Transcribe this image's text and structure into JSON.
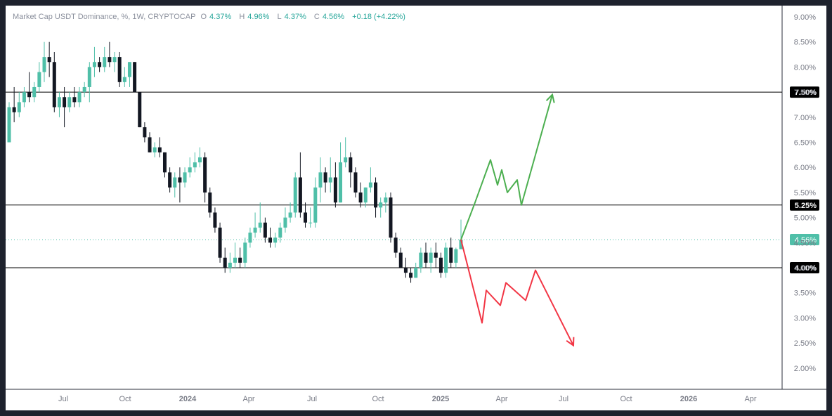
{
  "legend": {
    "symbol": "Market Cap USDT Dominance, %, 1W, CRYPTOCAP",
    "o_label": "O",
    "o_value": "4.37%",
    "h_label": "H",
    "h_value": "4.96%",
    "l_label": "L",
    "l_value": "4.37%",
    "c_label": "C",
    "c_value": "4.56%",
    "change": "+0.18 (+4.22%)"
  },
  "colors": {
    "up": "#4fbfa8",
    "down": "#131722",
    "bull_path": "#4caf50",
    "bear_path": "#f23645",
    "hline": "#000000",
    "last_price": "#4fbfa8"
  },
  "chart_data": {
    "type": "candlestick",
    "title": "Market Cap USDT Dominance, %, 1W, CRYPTOCAP",
    "y_unit": "%",
    "ylim": [
      1.5,
      9.2
    ],
    "y_ticks": [
      "9.00%",
      "8.50%",
      "8.00%",
      "7.50%",
      "7.00%",
      "6.50%",
      "6.00%",
      "5.50%",
      "5.00%",
      "4.50%",
      "4.00%",
      "3.50%",
      "3.00%",
      "2.50%",
      "2.00%"
    ],
    "x_ticks": [
      "Jul",
      "Oct",
      "2024",
      "Apr",
      "Jul",
      "Oct",
      "2025",
      "Apr",
      "Jul",
      "Oct",
      "2026",
      "Apr"
    ],
    "x_tick_bold": [
      "2024",
      "2025",
      "2026"
    ],
    "horizontal_levels": [
      {
        "value": 7.5,
        "label": "7.50%"
      },
      {
        "value": 5.25,
        "label": "5.25%"
      },
      {
        "value": 4.0,
        "label": "4.00%"
      }
    ],
    "last_price": {
      "value": 4.56,
      "label": "4.56%"
    },
    "candles_ohlc": [
      [
        6.5,
        7.3,
        6.5,
        7.2
      ],
      [
        7.2,
        7.6,
        6.9,
        7.1
      ],
      [
        7.1,
        7.5,
        7.0,
        7.3
      ],
      [
        7.3,
        7.6,
        7.2,
        7.5
      ],
      [
        7.5,
        7.9,
        7.3,
        7.4
      ],
      [
        7.4,
        7.7,
        7.3,
        7.6
      ],
      [
        7.6,
        8.1,
        7.5,
        7.9
      ],
      [
        7.9,
        8.5,
        7.7,
        8.2
      ],
      [
        8.2,
        8.5,
        7.8,
        8.1
      ],
      [
        8.1,
        8.3,
        7.1,
        7.2
      ],
      [
        7.2,
        7.5,
        7.0,
        7.4
      ],
      [
        7.4,
        7.6,
        6.8,
        7.2
      ],
      [
        7.2,
        7.5,
        7.1,
        7.4
      ],
      [
        7.4,
        7.6,
        7.2,
        7.3
      ],
      [
        7.3,
        7.6,
        7.2,
        7.5
      ],
      [
        7.5,
        7.7,
        7.4,
        7.6
      ],
      [
        7.6,
        8.1,
        7.3,
        8.0
      ],
      [
        8.0,
        8.4,
        7.8,
        8.1
      ],
      [
        8.1,
        8.2,
        7.9,
        8.0
      ],
      [
        8.0,
        8.4,
        7.9,
        8.2
      ],
      [
        8.2,
        8.5,
        8.0,
        8.1
      ],
      [
        8.1,
        8.3,
        7.9,
        8.2
      ],
      [
        8.2,
        8.3,
        7.6,
        7.7
      ],
      [
        7.7,
        8.0,
        7.6,
        7.8
      ],
      [
        7.8,
        8.1,
        7.6,
        8.1
      ],
      [
        8.1,
        8.1,
        7.5,
        7.5
      ],
      [
        7.5,
        7.5,
        6.8,
        6.8
      ],
      [
        6.8,
        6.9,
        6.5,
        6.6
      ],
      [
        6.6,
        6.7,
        6.3,
        6.3
      ],
      [
        6.3,
        6.5,
        6.2,
        6.4
      ],
      [
        6.4,
        6.6,
        6.2,
        6.3
      ],
      [
        6.3,
        6.3,
        5.8,
        5.9
      ],
      [
        5.9,
        6.0,
        5.5,
        5.6
      ],
      [
        5.6,
        5.9,
        5.4,
        5.8
      ],
      [
        5.8,
        6.0,
        5.3,
        5.7
      ],
      [
        5.7,
        6.0,
        5.6,
        5.9
      ],
      [
        5.9,
        6.2,
        5.8,
        6.0
      ],
      [
        6.0,
        6.3,
        5.9,
        6.1
      ],
      [
        6.1,
        6.4,
        6.0,
        6.2
      ],
      [
        6.2,
        6.3,
        5.3,
        5.5
      ],
      [
        5.5,
        5.6,
        5.0,
        5.1
      ],
      [
        5.1,
        5.2,
        4.7,
        4.8
      ],
      [
        4.8,
        4.9,
        4.1,
        4.2
      ],
      [
        4.2,
        4.4,
        3.9,
        4.0
      ],
      [
        4.0,
        4.3,
        3.9,
        4.1
      ],
      [
        4.1,
        4.5,
        4.0,
        4.2
      ],
      [
        4.2,
        4.4,
        4.0,
        4.1
      ],
      [
        4.1,
        4.6,
        4.0,
        4.5
      ],
      [
        4.5,
        4.8,
        4.4,
        4.7
      ],
      [
        4.7,
        5.1,
        4.6,
        4.8
      ],
      [
        4.8,
        5.3,
        4.7,
        4.9
      ],
      [
        4.9,
        5.0,
        4.5,
        4.6
      ],
      [
        4.6,
        4.8,
        4.4,
        4.5
      ],
      [
        4.5,
        4.7,
        4.4,
        4.6
      ],
      [
        4.6,
        4.9,
        4.5,
        4.8
      ],
      [
        4.8,
        5.2,
        4.7,
        5.0
      ],
      [
        5.0,
        5.3,
        4.9,
        5.1
      ],
      [
        5.1,
        5.9,
        5.0,
        5.8
      ],
      [
        5.8,
        6.3,
        5.0,
        5.1
      ],
      [
        5.1,
        5.3,
        4.8,
        4.9
      ],
      [
        4.9,
        5.2,
        4.8,
        4.9
      ],
      [
        4.9,
        5.8,
        4.8,
        5.6
      ],
      [
        5.6,
        6.2,
        5.3,
        5.9
      ],
      [
        5.9,
        6.0,
        5.5,
        5.7
      ],
      [
        5.7,
        6.2,
        5.5,
        5.8
      ],
      [
        5.8,
        6.1,
        5.2,
        5.3
      ],
      [
        5.3,
        6.5,
        5.3,
        6.1
      ],
      [
        6.1,
        6.6,
        6.0,
        6.2
      ],
      [
        6.2,
        6.3,
        5.6,
        5.9
      ],
      [
        5.9,
        6.0,
        5.4,
        5.5
      ],
      [
        5.5,
        5.7,
        5.2,
        5.3
      ],
      [
        5.3,
        5.6,
        5.2,
        5.6
      ],
      [
        5.6,
        6.0,
        5.5,
        5.7
      ],
      [
        5.7,
        5.8,
        5.0,
        5.2
      ],
      [
        5.2,
        5.4,
        5.0,
        5.3
      ],
      [
        5.3,
        5.5,
        5.1,
        5.4
      ],
      [
        5.4,
        5.5,
        4.5,
        4.6
      ],
      [
        4.6,
        4.7,
        4.2,
        4.3
      ],
      [
        4.3,
        4.4,
        4.0,
        4.0
      ],
      [
        4.0,
        4.2,
        3.8,
        3.9
      ],
      [
        3.9,
        4.0,
        3.7,
        3.8
      ],
      [
        3.8,
        4.1,
        3.8,
        4.0
      ],
      [
        4.0,
        4.4,
        3.9,
        4.3
      ],
      [
        4.3,
        4.5,
        4.0,
        4.1
      ],
      [
        4.1,
        4.4,
        3.9,
        4.3
      ],
      [
        4.3,
        4.5,
        4.0,
        4.2
      ],
      [
        4.2,
        4.3,
        3.8,
        3.9
      ],
      [
        3.9,
        4.5,
        3.8,
        4.4
      ],
      [
        4.4,
        4.6,
        4.0,
        4.1
      ],
      [
        4.1,
        4.4,
        4.0,
        4.37
      ],
      [
        4.37,
        4.96,
        4.37,
        4.56
      ]
    ],
    "projection_up": [
      4.56,
      5.3,
      6.15,
      5.65,
      5.95,
      5.5,
      5.75,
      5.25,
      7.45
    ],
    "projection_down": [
      4.56,
      2.9,
      3.55,
      3.25,
      3.7,
      3.35,
      3.95,
      2.45
    ]
  }
}
